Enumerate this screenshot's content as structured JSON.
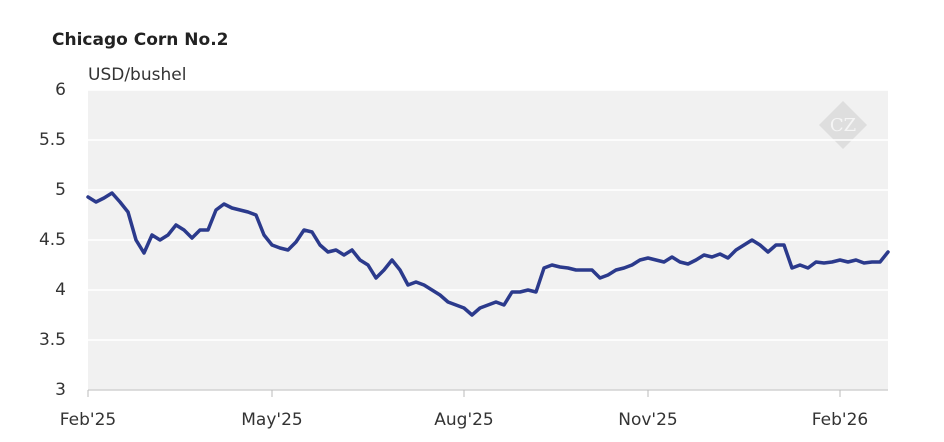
{
  "chart_data": {
    "type": "line",
    "title": "Chicago Corn No.2",
    "y_label": "USD/bushel",
    "watermark": "CZ",
    "color": "#2b3a8c",
    "grid": true,
    "ylim": [
      3,
      6
    ],
    "yticks": [
      3,
      3.5,
      4,
      4.5,
      5,
      5.5,
      6
    ],
    "categories": [
      "Feb'25",
      null,
      null,
      null,
      null,
      null,
      null,
      null,
      null,
      null,
      null,
      null,
      null,
      null,
      null,
      null,
      null,
      null,
      null,
      null,
      null,
      null,
      null,
      "May'25",
      null,
      null,
      null,
      null,
      null,
      null,
      null,
      null,
      null,
      null,
      null,
      null,
      null,
      null,
      null,
      null,
      null,
      null,
      null,
      null,
      null,
      null,
      null,
      "Aug'25",
      null,
      null,
      null,
      null,
      null,
      null,
      null,
      null,
      null,
      null,
      null,
      null,
      null,
      null,
      null,
      null,
      null,
      null,
      null,
      null,
      null,
      null,
      "Nov'25",
      null,
      null,
      null,
      null,
      null,
      null,
      null,
      null,
      null,
      null,
      null,
      null,
      null,
      null,
      null,
      null,
      null,
      null,
      null,
      null,
      null,
      null,
      null,
      "Feb'26",
      null,
      null,
      null,
      null,
      null,
      null
    ],
    "values": [
      4.93,
      4.88,
      4.92,
      4.97,
      4.88,
      4.78,
      4.5,
      4.37,
      4.55,
      4.5,
      4.55,
      4.65,
      4.6,
      4.52,
      4.6,
      4.6,
      4.8,
      4.86,
      4.82,
      4.8,
      4.78,
      4.75,
      4.55,
      4.45,
      4.42,
      4.4,
      4.48,
      4.6,
      4.58,
      4.45,
      4.38,
      4.4,
      4.35,
      4.4,
      4.3,
      4.25,
      4.12,
      4.2,
      4.3,
      4.2,
      4.05,
      4.08,
      4.05,
      4.0,
      3.95,
      3.88,
      3.85,
      3.82,
      3.75,
      3.82,
      3.85,
      3.88,
      3.85,
      3.98,
      3.98,
      4.0,
      3.98,
      4.22,
      4.25,
      4.23,
      4.22,
      4.2,
      4.2,
      4.2,
      4.12,
      4.15,
      4.2,
      4.22,
      4.25,
      4.3,
      4.32,
      4.3,
      4.28,
      4.33,
      4.28,
      4.26,
      4.3,
      4.35,
      4.33,
      4.36,
      4.32,
      4.4,
      4.45,
      4.5,
      4.45,
      4.38,
      4.45,
      4.45,
      4.22,
      4.25,
      4.22,
      4.28,
      4.27,
      4.28,
      4.3,
      4.28,
      4.3,
      4.27,
      4.28,
      4.28,
      4.38
    ]
  }
}
